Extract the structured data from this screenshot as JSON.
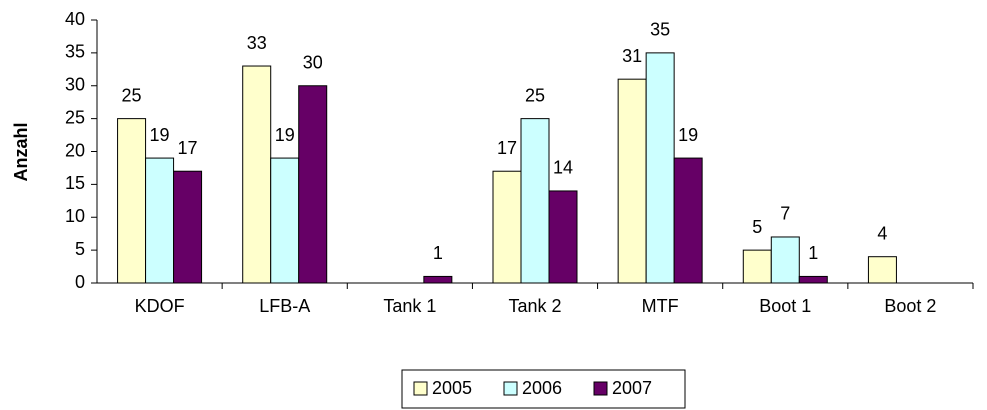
{
  "chart_data": {
    "type": "bar",
    "y_label": "Anzahl",
    "categories": [
      "KDOF",
      "LFB-A",
      "Tank 1",
      "Tank 2",
      "MTF",
      "Boot 1",
      "Boot 2"
    ],
    "series": [
      {
        "name": "2005",
        "color": "#ffffcc",
        "values": [
          25,
          33,
          null,
          17,
          31,
          5,
          4
        ]
      },
      {
        "name": "2006",
        "color": "#ccffff",
        "values": [
          19,
          19,
          null,
          25,
          35,
          7,
          null
        ]
      },
      {
        "name": "2007",
        "color": "#660066",
        "values": [
          17,
          30,
          1,
          14,
          19,
          1,
          null
        ]
      }
    ],
    "ylim": [
      0,
      40
    ],
    "yticks": [
      0,
      5,
      10,
      15,
      20,
      25,
      30,
      35,
      40
    ],
    "grid": false,
    "legend": "bottom"
  }
}
